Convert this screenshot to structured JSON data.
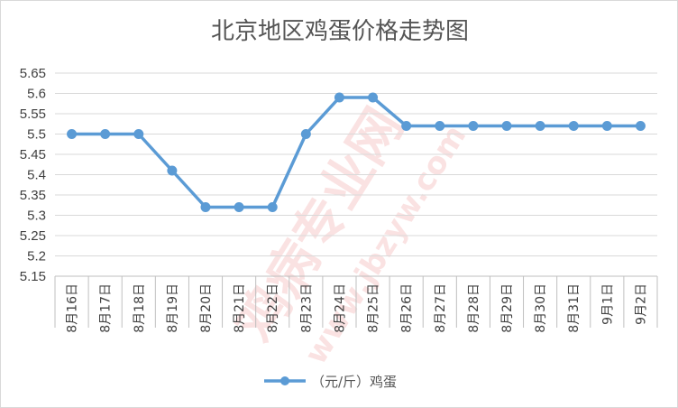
{
  "chart_data": {
    "type": "line",
    "title": "北京地区鸡蛋价格走势图",
    "categories": [
      "8月16日",
      "8月17日",
      "8月18日",
      "8月19日",
      "8月20日",
      "8月21日",
      "8月22日",
      "8月23日",
      "8月24日",
      "8月25日",
      "8月26日",
      "8月27日",
      "8月28日",
      "8月29日",
      "8月30日",
      "8月31日",
      "9月1日",
      "9月2日"
    ],
    "series": [
      {
        "name": "（元/斤）鸡蛋",
        "values": [
          5.5,
          5.5,
          5.5,
          5.41,
          5.32,
          5.32,
          5.32,
          5.5,
          5.59,
          5.59,
          5.52,
          5.52,
          5.52,
          5.52,
          5.52,
          5.52,
          5.52,
          5.52
        ]
      }
    ],
    "ylim": [
      5.15,
      5.65
    ],
    "yticks": [
      "5.15",
      "5.2",
      "5.25",
      "5.3",
      "5.35",
      "5.4",
      "5.45",
      "5.5",
      "5.55",
      "5.6",
      "5.65"
    ],
    "grid": true,
    "legend_position": "bottom",
    "colors": {
      "line": "#5b9bd5",
      "grid": "#d9d9d9",
      "axis": "#bfbfbf",
      "watermark": "#e23b3b"
    }
  },
  "watermark": {
    "brand": "鸡病专业网",
    "site": "www.jbzyw.com"
  }
}
